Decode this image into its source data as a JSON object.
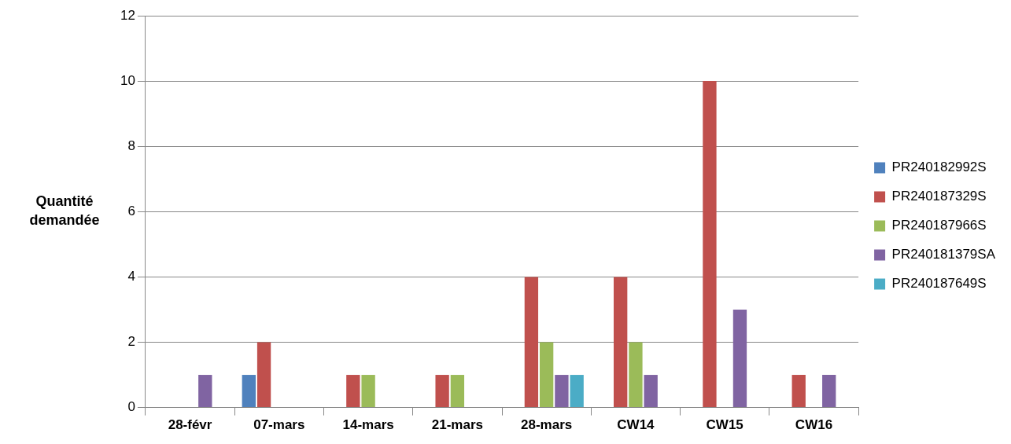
{
  "chart_data": {
    "type": "bar",
    "ylabel": "Quantité demandée",
    "categories": [
      "28-févr",
      "07-mars",
      "14-mars",
      "21-mars",
      "28-mars",
      "CW14",
      "CW15",
      "CW16"
    ],
    "series": [
      {
        "name": "PR240182992S",
        "color": "#4f81bd",
        "values": [
          null,
          1,
          null,
          null,
          null,
          null,
          null,
          null
        ]
      },
      {
        "name": "PR240187329S",
        "color": "#c0504d",
        "values": [
          null,
          2,
          1,
          1,
          4,
          4,
          10,
          1
        ]
      },
      {
        "name": "PR240187966S",
        "color": "#9bbb59",
        "values": [
          null,
          null,
          1,
          1,
          2,
          2,
          null,
          null
        ]
      },
      {
        "name": "PR240181379SA",
        "color": "#8064a2",
        "values": [
          1,
          null,
          null,
          null,
          1,
          1,
          3,
          1
        ]
      },
      {
        "name": "PR240187649S",
        "color": "#4bacc6",
        "values": [
          null,
          null,
          null,
          null,
          1,
          null,
          null,
          null
        ]
      }
    ],
    "ylim": [
      0,
      12
    ],
    "yticks": [
      0,
      2,
      4,
      6,
      8,
      10,
      12
    ],
    "grid": "y",
    "legend": "right"
  }
}
